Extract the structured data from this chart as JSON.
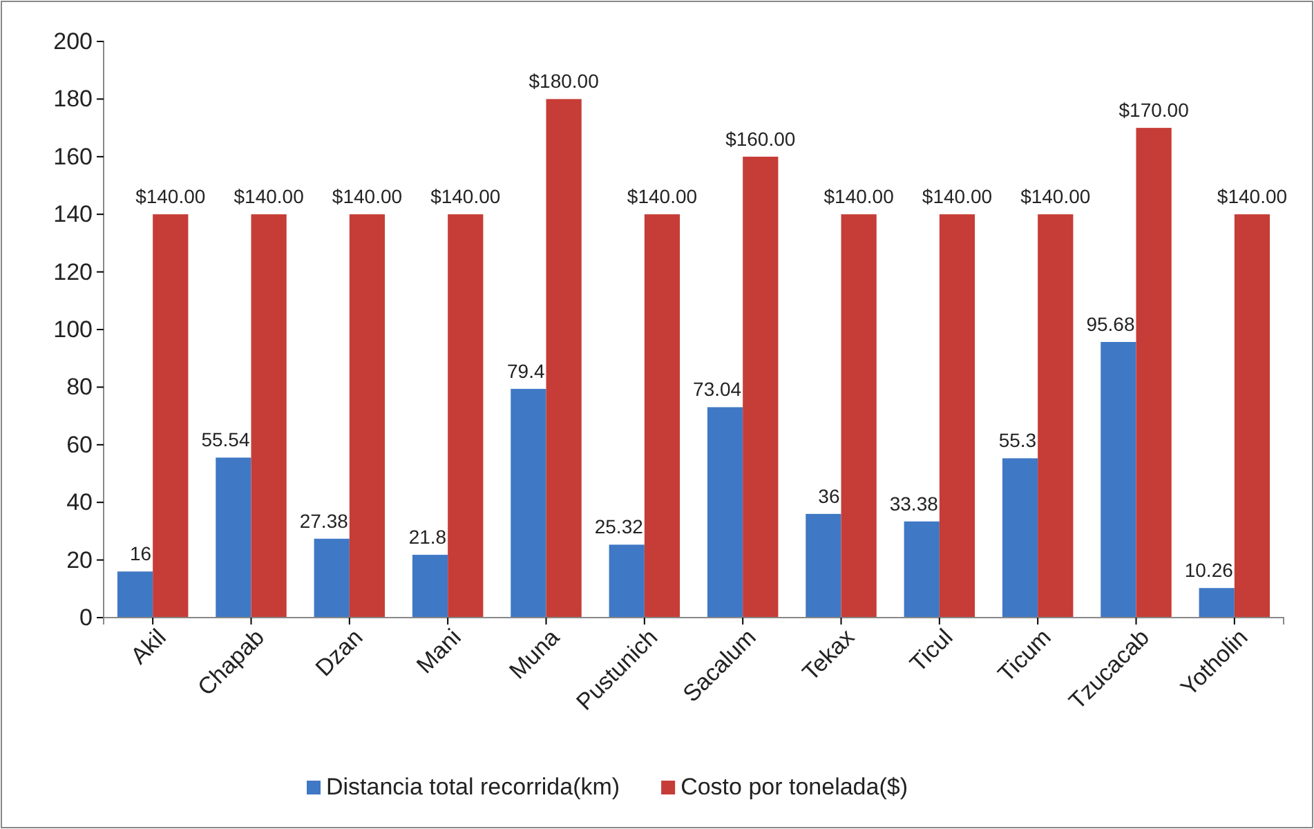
{
  "chart_data": {
    "type": "bar",
    "categories": [
      "Akil",
      "Chapab",
      "Dzan",
      "Mani",
      "Muna",
      "Pustunich",
      "Sacalum",
      "Tekax",
      "Ticul",
      "Ticum",
      "Tzucacab",
      "Yotholin"
    ],
    "series": [
      {
        "name": "Distancia total recorrida(km)",
        "color": "#3f78c4",
        "values": [
          16,
          55.54,
          27.38,
          21.8,
          79.4,
          25.32,
          73.04,
          36,
          33.38,
          55.3,
          95.68,
          10.26
        ],
        "value_labels": [
          "16",
          "55.54",
          "27.38",
          "21.8",
          "79.4",
          "25.32",
          "73.04",
          "36",
          "33.38",
          "55.3",
          "95.68",
          "10.26"
        ]
      },
      {
        "name": "Costo por tonelada($)",
        "color": "#c63c36",
        "values": [
          140,
          140,
          140,
          140,
          180,
          140,
          160,
          140,
          140,
          140,
          170,
          140
        ],
        "value_labels": [
          "$140.00",
          "$140.00",
          "$140.00",
          "$140.00",
          "$180.00",
          "$140.00",
          "$160.00",
          "$140.00",
          "$140.00",
          "$140.00",
          "$170.00",
          "$140.00"
        ]
      }
    ],
    "ylim": [
      0,
      200
    ],
    "yticks": [
      0,
      20,
      40,
      60,
      80,
      100,
      120,
      140,
      160,
      180,
      200
    ],
    "grid": false,
    "legend": "bottom"
  }
}
